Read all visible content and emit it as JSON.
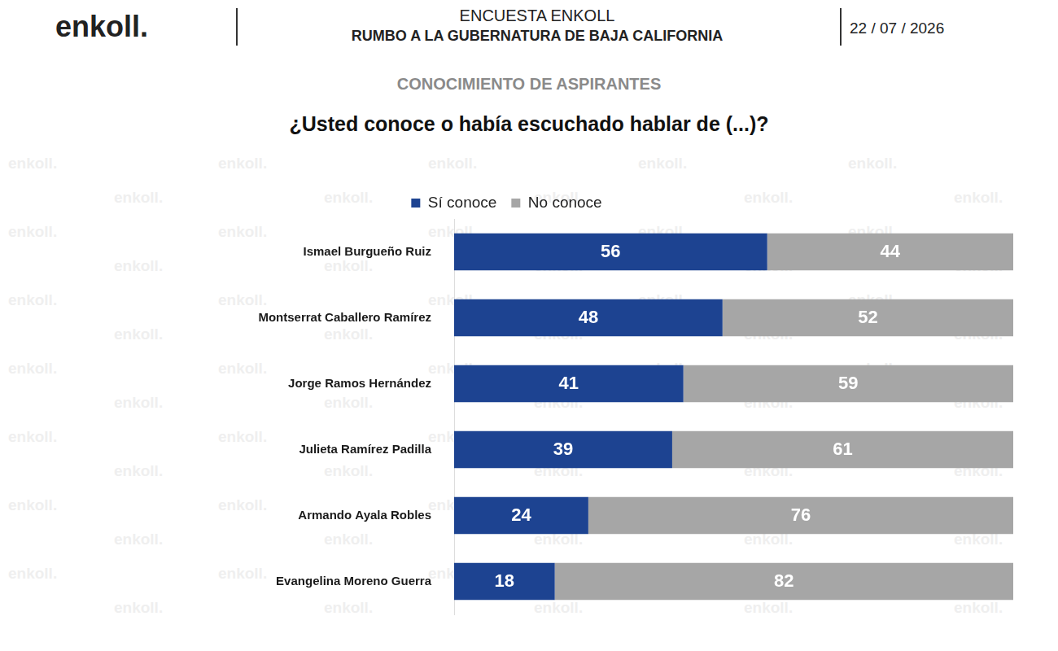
{
  "header": {
    "logo": "enkoll.",
    "title": "ENCUESTA ENKOLL",
    "subtitle": "RUMBO A LA GUBERNATURA DE BAJA CALIFORNIA",
    "date": "22 / 07 / 2026",
    "watermark": "enkoll."
  },
  "chart_data": {
    "type": "bar",
    "orientation": "horizontal",
    "stacked": true,
    "title": "CONOCIMIENTO DE ASPIRANTES",
    "subtitle": "¿Usted conoce o había escuchado hablar de (...)?",
    "categories": [
      "Ismael Burgueño Ruiz",
      "Montserrat Caballero Ramírez",
      "Jorge Ramos Hernández",
      "Julieta Ramírez Padilla",
      "Armando Ayala Robles",
      "Evangelina Moreno Guerra"
    ],
    "series": [
      {
        "name": "Sí conoce",
        "color": "#1d4391",
        "values": [
          56,
          48,
          41,
          39,
          24,
          18
        ]
      },
      {
        "name": "No conoce",
        "color": "#a6a6a6",
        "values": [
          44,
          52,
          59,
          61,
          76,
          82
        ]
      }
    ],
    "xlim": [
      0,
      100
    ],
    "grid": false,
    "legend": "top",
    "data_labels": true,
    "tick_labels": "y"
  }
}
